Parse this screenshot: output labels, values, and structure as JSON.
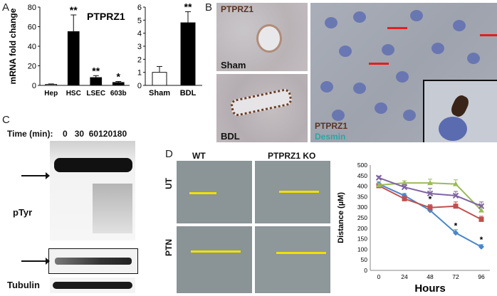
{
  "panels": {
    "A": "A",
    "B": "B",
    "C": "C",
    "D": "D"
  },
  "chart_data": [
    {
      "type": "bar",
      "title": "PTPRZ1",
      "ylabel": "mRNA fold change",
      "categories": [
        "Hep",
        "HSC",
        "LSEC",
        "603b"
      ],
      "values": [
        1,
        55,
        8,
        3
      ],
      "errors": [
        0.5,
        17,
        2,
        1
      ],
      "significance": [
        "",
        "**",
        "**",
        "*"
      ],
      "ylim": [
        0,
        80
      ],
      "yticks": [
        0,
        20,
        40,
        60,
        80
      ],
      "colors": [
        "#ffffff",
        "#000000",
        "#000000",
        "#000000"
      ]
    },
    {
      "type": "bar",
      "categories": [
        "Sham",
        "BDL"
      ],
      "values": [
        1,
        4.8
      ],
      "errors": [
        0.45,
        0.85
      ],
      "significance": [
        "",
        "**"
      ],
      "ylim": [
        0,
        6
      ],
      "yticks": [
        0,
        1,
        2,
        3,
        4,
        5,
        6
      ],
      "colors": [
        "#ffffff",
        "#000000"
      ]
    },
    {
      "type": "line",
      "ylabel": "Distance (µM)",
      "xlabel": "Hours",
      "x": [
        0,
        24,
        48,
        72,
        96
      ],
      "ylim": [
        0,
        500
      ],
      "yticks": [
        0,
        50,
        100,
        150,
        200,
        250,
        300,
        350,
        400,
        450,
        500
      ],
      "series": [
        {
          "values": [
            410,
            355,
            285,
            178,
            112
          ],
          "color": "#4a86c8",
          "marker": "diamond",
          "errors": [
            10,
            10,
            12,
            15,
            10
          ],
          "significance": [
            "",
            "",
            "",
            "*",
            "*"
          ]
        },
        {
          "values": [
            402,
            340,
            298,
            305,
            242
          ],
          "color": "#c0504d",
          "marker": "square",
          "errors": [
            8,
            10,
            14,
            20,
            15
          ],
          "significance": [
            "",
            "",
            "*",
            "",
            ""
          ]
        },
        {
          "values": [
            405,
            415,
            415,
            410,
            285
          ],
          "color": "#9bbb59",
          "marker": "triangle",
          "errors": [
            8,
            10,
            18,
            20,
            20
          ],
          "significance": [
            "",
            "",
            "",
            "",
            ""
          ]
        },
        {
          "values": [
            440,
            395,
            365,
            355,
            305
          ],
          "color": "#8064a2",
          "marker": "x",
          "errors": [
            8,
            12,
            25,
            20,
            20
          ],
          "significance": [
            "",
            "",
            "",
            "",
            ""
          ]
        }
      ]
    }
  ],
  "panel_b": {
    "left_top_title": "PTPRZ1",
    "left_top_label": "Sham",
    "left_bottom_label": "BDL",
    "right_label_1": "PTPRZ1",
    "right_label_2": "Desmin"
  },
  "panel_c": {
    "time_label": "Time (min):",
    "times": [
      "0",
      "30",
      "60",
      "120",
      "180"
    ],
    "ptyr_label": "pTyr",
    "tubulin_label": "Tubulin"
  },
  "panel_d": {
    "col_wt": "WT",
    "col_ko": "PTPRZ1 KO",
    "row_ut": "UT",
    "row_ptn": "PTN"
  }
}
